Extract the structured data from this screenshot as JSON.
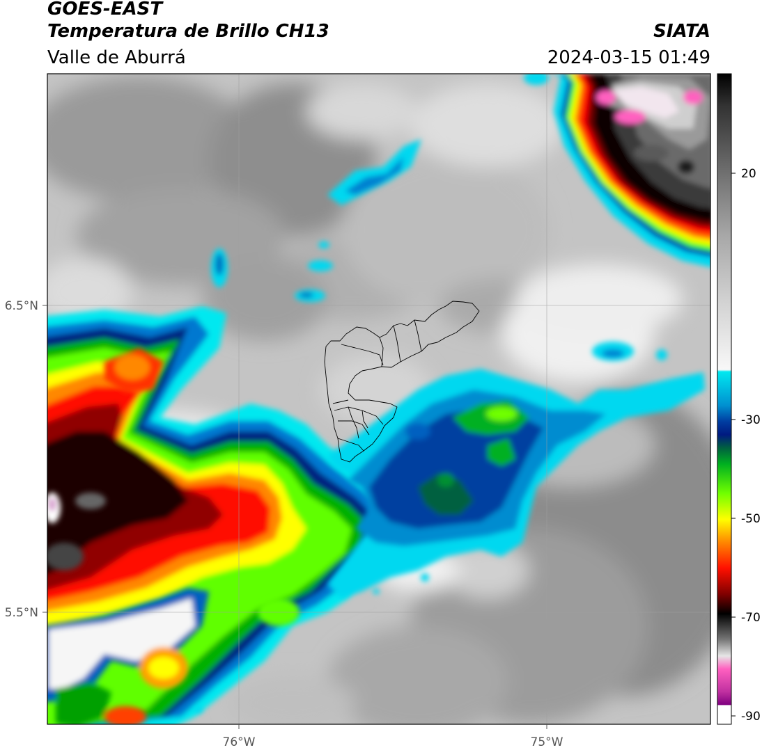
{
  "header": {
    "satellite": "GOES-EAST",
    "product": "Temperatura de Brillo CH13",
    "region": "Valle de Aburrá",
    "organization": "SIATA",
    "datetime": "2024-03-15 01:49"
  },
  "map": {
    "lat_ticks": [
      {
        "value": 6.5,
        "label": "6.5°N"
      },
      {
        "value": 5.5,
        "label": "5.5°N"
      }
    ],
    "lon_ticks": [
      {
        "value": -76.0,
        "label": "76°W"
      },
      {
        "value": -75.0,
        "label": "75°W"
      }
    ],
    "lon_range": [
      -76.62,
      -74.47
    ],
    "lat_range": [
      5.14,
      7.25
    ]
  },
  "colorbar": {
    "ticks": [
      {
        "value": 20,
        "label": "20"
      },
      {
        "value": -30,
        "label": "-30"
      },
      {
        "value": -50,
        "label": "-50"
      },
      {
        "value": -70,
        "label": "-70"
      },
      {
        "value": -90,
        "label": "-90"
      }
    ],
    "range": [
      -93,
      40
    ]
  }
}
